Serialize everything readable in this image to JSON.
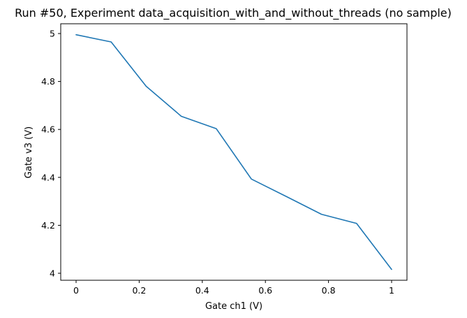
{
  "colors": {
    "series": "#1f77b4",
    "axes": "#000000",
    "background": "#ffffff"
  },
  "chart_data": {
    "type": "line",
    "title": "Run #50, Experiment data_acquisition_with_and_without_threads (no sample)",
    "xlabel": "Gate ch1 (V)",
    "ylabel": "Gate v3 (V)",
    "xlim": [
      -0.0,
      1.0
    ],
    "ylim": [
      4.0,
      5.0
    ],
    "xticks": [
      0,
      0.2,
      0.4,
      0.6,
      0.8,
      1
    ],
    "xtick_labels": [
      "0",
      "0.2",
      "0.4",
      "0.6",
      "0.8",
      "1"
    ],
    "yticks": [
      4,
      4.2,
      4.4,
      4.6,
      4.8,
      5
    ],
    "ytick_labels": [
      "4",
      "4.2",
      "4.4",
      "4.6",
      "4.8",
      "5"
    ],
    "grid": false,
    "series": [
      {
        "name": "Gate v3",
        "x": [
          0,
          0.1111,
          0.2222,
          0.3333,
          0.4444,
          0.5556,
          0.6667,
          0.7778,
          0.8889,
          1.0
        ],
        "values": [
          4.995,
          4.965,
          4.78,
          4.655,
          4.603,
          4.393,
          4.32,
          4.246,
          4.208,
          4.016
        ]
      }
    ]
  }
}
